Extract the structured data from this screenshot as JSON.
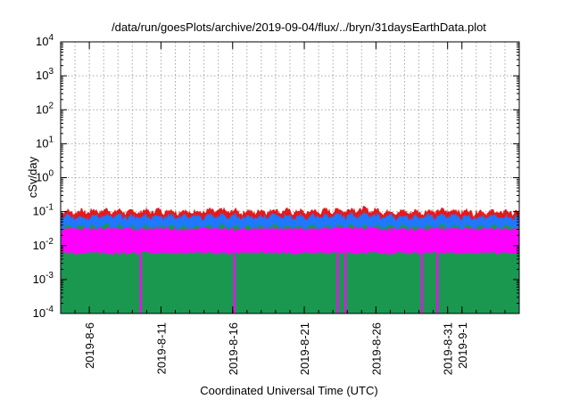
{
  "chart_data": {
    "type": "line",
    "title": "/data/run/goesPlots/archive/2019-09-04/flux/../bryn/31daysEarthData.plot",
    "xlabel": "Coordinated Universal Time (UTC)",
    "ylabel": "cSv/day",
    "yscale": "log",
    "ylim": [
      0.0001,
      10000
    ],
    "xlim": [
      "2019-08-04",
      "2019-09-05"
    ],
    "grid": true,
    "legend": "none",
    "x_ticks": [
      {
        "date": "2019-08-06",
        "label": "2019-8-6"
      },
      {
        "date": "2019-08-11",
        "label": "2019-8-11"
      },
      {
        "date": "2019-08-16",
        "label": "2019-8-16"
      },
      {
        "date": "2019-08-21",
        "label": "2019-8-21"
      },
      {
        "date": "2019-08-26",
        "label": "2019-8-26"
      },
      {
        "date": "2019-08-31",
        "label": "2019-8-31"
      },
      {
        "date": "2019-09-01",
        "label": "2019-9-1"
      }
    ],
    "y_ticks": [
      {
        "value": 0.0001,
        "base": "10",
        "exp": "-4"
      },
      {
        "value": 0.001,
        "base": "10",
        "exp": "-3"
      },
      {
        "value": 0.01,
        "base": "10",
        "exp": "-2"
      },
      {
        "value": 0.1,
        "base": "10",
        "exp": "-1"
      },
      {
        "value": 1,
        "base": "10",
        "exp": "0"
      },
      {
        "value": 10,
        "base": "10",
        "exp": "1"
      },
      {
        "value": 100,
        "base": "10",
        "exp": "2"
      },
      {
        "value": 1000,
        "base": "10",
        "exp": "3"
      },
      {
        "value": 10000,
        "base": "10",
        "exp": "4"
      }
    ],
    "series": [
      {
        "color": "#e31a1c",
        "values": [
          {
            "x": "2019-08-05",
            "y": 0.1
          },
          {
            "x": "2019-08-07",
            "y": 0.11
          },
          {
            "x": "2019-08-09",
            "y": 0.1
          },
          {
            "x": "2019-08-11",
            "y": 0.11
          },
          {
            "x": "2019-08-13",
            "y": 0.1
          },
          {
            "x": "2019-08-15",
            "y": 0.11
          },
          {
            "x": "2019-08-17",
            "y": 0.1
          },
          {
            "x": "2019-08-19",
            "y": 0.11
          },
          {
            "x": "2019-08-21",
            "y": 0.1
          },
          {
            "x": "2019-08-23",
            "y": 0.11
          },
          {
            "x": "2019-08-25",
            "y": 0.12
          },
          {
            "x": "2019-08-27",
            "y": 0.1
          },
          {
            "x": "2019-08-29",
            "y": 0.1
          },
          {
            "x": "2019-08-31",
            "y": 0.11
          },
          {
            "x": "2019-09-02",
            "y": 0.1
          },
          {
            "x": "2019-09-04",
            "y": 0.1
          }
        ]
      },
      {
        "color": "#1f78ff",
        "values": [
          {
            "x": "2019-08-05",
            "y": 0.07
          },
          {
            "x": "2019-08-07",
            "y": 0.075
          },
          {
            "x": "2019-08-09",
            "y": 0.07
          },
          {
            "x": "2019-08-11",
            "y": 0.075
          },
          {
            "x": "2019-08-13",
            "y": 0.07
          },
          {
            "x": "2019-08-15",
            "y": 0.075
          },
          {
            "x": "2019-08-17",
            "y": 0.07
          },
          {
            "x": "2019-08-19",
            "y": 0.075
          },
          {
            "x": "2019-08-21",
            "y": 0.07
          },
          {
            "x": "2019-08-23",
            "y": 0.075
          },
          {
            "x": "2019-08-25",
            "y": 0.08
          },
          {
            "x": "2019-08-27",
            "y": 0.07
          },
          {
            "x": "2019-08-29",
            "y": 0.07
          },
          {
            "x": "2019-08-31",
            "y": 0.075
          },
          {
            "x": "2019-09-02",
            "y": 0.07
          },
          {
            "x": "2019-09-04",
            "y": 0.07
          }
        ]
      },
      {
        "color": "#1a9850",
        "values": [
          {
            "x": "2019-08-05",
            "y": 0.035
          },
          {
            "x": "2019-08-07",
            "y": 0.037
          },
          {
            "x": "2019-08-09",
            "y": 0.035
          },
          {
            "x": "2019-08-11",
            "y": 0.037
          },
          {
            "x": "2019-08-13",
            "y": 0.035
          },
          {
            "x": "2019-08-15",
            "y": 0.037
          },
          {
            "x": "2019-08-17",
            "y": 0.035
          },
          {
            "x": "2019-08-19",
            "y": 0.037
          },
          {
            "x": "2019-08-21",
            "y": 0.035
          },
          {
            "x": "2019-08-23",
            "y": 0.037
          },
          {
            "x": "2019-08-25",
            "y": 0.038
          },
          {
            "x": "2019-08-27",
            "y": 0.035
          },
          {
            "x": "2019-08-29",
            "y": 0.035
          },
          {
            "x": "2019-08-31",
            "y": 0.037
          },
          {
            "x": "2019-09-02",
            "y": 0.035
          },
          {
            "x": "2019-09-04",
            "y": 0.035
          }
        ]
      },
      {
        "color": "#ff00ff",
        "baseline": 0.006,
        "values": [
          {
            "x": "2019-08-05",
            "y": 0.03
          },
          {
            "x": "2019-08-07",
            "y": 0.032
          },
          {
            "x": "2019-08-09",
            "y": 0.03
          },
          {
            "x": "2019-08-11",
            "y": 0.032
          },
          {
            "x": "2019-08-13",
            "y": 0.03
          },
          {
            "x": "2019-08-15",
            "y": 0.032
          },
          {
            "x": "2019-08-17",
            "y": 0.03
          },
          {
            "x": "2019-08-19",
            "y": 0.032
          },
          {
            "x": "2019-08-21",
            "y": 0.03
          },
          {
            "x": "2019-08-23",
            "y": 0.032
          },
          {
            "x": "2019-08-25",
            "y": 0.033
          },
          {
            "x": "2019-08-27",
            "y": 0.03
          },
          {
            "x": "2019-08-29",
            "y": 0.03
          },
          {
            "x": "2019-08-31",
            "y": 0.032
          },
          {
            "x": "2019-09-02",
            "y": 0.03
          },
          {
            "x": "2019-09-04",
            "y": 0.03
          }
        ],
        "dropouts": [
          {
            "x": "2019-08-09T14:00",
            "y": 0.0001
          },
          {
            "x": "2019-08-16T03:00",
            "y": 0.0001
          },
          {
            "x": "2019-08-23T08:00",
            "y": 0.0001
          },
          {
            "x": "2019-08-23T21:00",
            "y": 0.0001
          },
          {
            "x": "2019-08-29T05:00",
            "y": 0.0001
          },
          {
            "x": "2019-08-30T07:00",
            "y": 0.0001
          }
        ]
      }
    ]
  }
}
